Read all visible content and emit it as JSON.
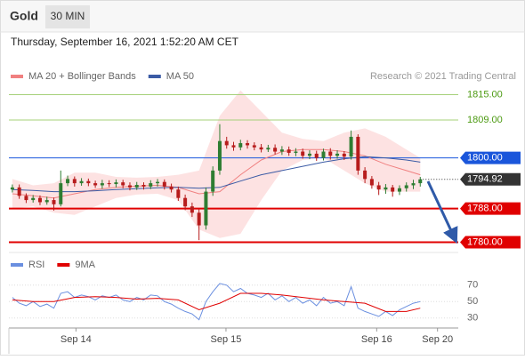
{
  "header": {
    "symbol": "Gold",
    "interval": "30 MIN",
    "timestamp": "Thursday, September 16, 2021 1:52:20 AM CET",
    "credit": "Research © 2021 Trading Central"
  },
  "chart_data": [
    {
      "type": "candlestick",
      "xlim": [
        -0.5,
        64.5
      ],
      "ylim": [
        1778,
        1817
      ],
      "up_color": "#2e7d32",
      "down_color": "#b71c1c",
      "open": [
        1792.5,
        1793,
        1791,
        1790,
        1790.5,
        1789.5,
        1790,
        1789,
        1794,
        1795,
        1794,
        1794.5,
        1794,
        1793.5,
        1794,
        1793.8,
        1794.2,
        1793.5,
        1793,
        1793.6,
        1793.2,
        1794,
        1794.3,
        1793.2,
        1792.5,
        1790.5,
        1788.5,
        1787,
        1784,
        1792,
        1797,
        1804,
        1803,
        1802.5,
        1803.5,
        1803,
        1802.5,
        1802,
        1802.4,
        1801.5,
        1802,
        1801.2,
        1801.5,
        1800.5,
        1801,
        1800,
        1801.5,
        1800.5,
        1801,
        1800.3,
        1805,
        1797,
        1795,
        1793.5,
        1792.5,
        1793,
        1792,
        1792.8,
        1793.5,
        1794
      ],
      "high": [
        1793.7,
        1793.7,
        1791.6,
        1791.2,
        1791.1,
        1790.8,
        1790.6,
        1797,
        1795.8,
        1795.6,
        1795.2,
        1795.1,
        1794.6,
        1794.8,
        1794.7,
        1794.9,
        1794.8,
        1794.2,
        1794.3,
        1794.2,
        1794.7,
        1795,
        1794.9,
        1793.9,
        1793.2,
        1791.3,
        1789.4,
        1787.8,
        1793,
        1798,
        1808,
        1805,
        1803.8,
        1804.3,
        1804.2,
        1803.7,
        1803.3,
        1803.1,
        1803.2,
        1802.8,
        1802.7,
        1802.3,
        1802.2,
        1801.8,
        1801.7,
        1802.2,
        1802.3,
        1801.8,
        1801.6,
        1806.5,
        1805.6,
        1797.8,
        1795.7,
        1794.3,
        1793.8,
        1793.6,
        1793.5,
        1794.2,
        1794.8,
        1795.5
      ],
      "low": [
        1791.8,
        1790.3,
        1789.3,
        1789.4,
        1788.8,
        1788.9,
        1787.5,
        1788.5,
        1793.3,
        1793.2,
        1793.4,
        1793.3,
        1792.9,
        1792.7,
        1793.1,
        1793,
        1792.8,
        1792.3,
        1792.4,
        1792.5,
        1792.6,
        1793.2,
        1792.5,
        1791.8,
        1789.8,
        1787.6,
        1786,
        1780.5,
        1783,
        1791,
        1796,
        1802.2,
        1801.7,
        1801.8,
        1802.2,
        1801.8,
        1801.3,
        1801.4,
        1800.8,
        1800.7,
        1800.5,
        1800.4,
        1799.8,
        1799.7,
        1799.3,
        1799.4,
        1799.6,
        1799.8,
        1799.5,
        1799.6,
        1796,
        1794,
        1792.7,
        1791.2,
        1791.5,
        1790.8,
        1791.2,
        1792,
        1792.6,
        1793.2
      ],
      "close": [
        1793,
        1791,
        1790,
        1790.5,
        1789.5,
        1790,
        1789,
        1794,
        1795,
        1794,
        1794.5,
        1794,
        1793.5,
        1794,
        1793.8,
        1794.2,
        1793.5,
        1793,
        1793.6,
        1793.2,
        1794,
        1794.3,
        1793.2,
        1792.5,
        1790.5,
        1788.5,
        1787,
        1784,
        1792,
        1797,
        1804,
        1803,
        1802.5,
        1803.5,
        1803,
        1802.5,
        1802,
        1802.4,
        1801.5,
        1802,
        1801.2,
        1801.5,
        1800.5,
        1801,
        1800,
        1801.5,
        1800.5,
        1801,
        1800.3,
        1805,
        1797,
        1795,
        1793.5,
        1792.5,
        1793,
        1792,
        1792.8,
        1793.5,
        1794,
        1794.92
      ],
      "series": [
        {
          "name": "MA 20 + Bollinger Bands",
          "color": "#f08080",
          "band_color": "#fde2e2",
          "x": [
            0,
            3,
            6,
            9,
            12,
            15,
            18,
            21,
            24,
            27,
            30,
            33,
            36,
            39,
            42,
            45,
            48,
            51,
            54,
            57,
            59
          ],
          "values": [
            1791.5,
            1791,
            1790.5,
            1791.5,
            1792.5,
            1793,
            1793.3,
            1793.5,
            1793,
            1791.5,
            1792,
            1796,
            1799.5,
            1801.5,
            1802,
            1802,
            1801.5,
            1800.5,
            1798.5,
            1797,
            1796
          ],
          "upper": [
            1795,
            1793.5,
            1794,
            1796.5,
            1796.5,
            1795.5,
            1795.3,
            1795.5,
            1796,
            1797,
            1810,
            1816,
            1811,
            1806,
            1804.5,
            1804,
            1806,
            1807,
            1805,
            1802,
            1800
          ],
          "lower": [
            1788,
            1788.5,
            1787,
            1786.5,
            1788.5,
            1790.5,
            1791.3,
            1791.5,
            1790,
            1783,
            1781,
            1782,
            1790,
            1797,
            1799.5,
            1800,
            1797,
            1794,
            1792,
            1792,
            1792
          ]
        },
        {
          "name": "MA 50",
          "color": "#3b5ba5",
          "x": [
            0,
            3,
            6,
            9,
            12,
            15,
            18,
            21,
            24,
            27,
            30,
            33,
            36,
            39,
            42,
            45,
            48,
            51,
            54,
            57,
            59
          ],
          "values": [
            1792.5,
            1792.3,
            1792,
            1792,
            1792.2,
            1792.5,
            1792.7,
            1792.9,
            1793,
            1792.8,
            1793,
            1794.5,
            1796,
            1797,
            1798,
            1799,
            1799.8,
            1800.3,
            1800,
            1799.5,
            1799
          ]
        }
      ],
      "levels": [
        {
          "value": 1815,
          "label": "1815.00",
          "color": "#a5d07a",
          "text_color": "#4c9a12",
          "style": "plain"
        },
        {
          "value": 1809,
          "label": "1809.00",
          "color": "#a5d07a",
          "text_color": "#4c9a12",
          "style": "plain"
        },
        {
          "value": 1800,
          "label": "1800.00",
          "color": "#1a56db",
          "text_color": "#ffffff",
          "style": "box"
        },
        {
          "value": 1794.92,
          "label": "1794.92",
          "color": "#333333",
          "text_color": "#ffffff",
          "style": "current"
        },
        {
          "value": 1788,
          "label": "1788.00",
          "color": "#e00000",
          "text_color": "#ffffff",
          "style": "box"
        },
        {
          "value": 1780,
          "label": "1780.00",
          "color": "#e00000",
          "text_color": "#ffffff",
          "style": "box"
        }
      ]
    },
    {
      "type": "line",
      "xlim": [
        -0.5,
        64.5
      ],
      "ylim": [
        19,
        87
      ],
      "yticks": [
        70,
        50,
        30
      ],
      "grid": true,
      "xticks": [
        {
          "value": 9.2,
          "label": "Sep 14"
        },
        {
          "value": 30.9,
          "label": "Sep 15"
        },
        {
          "value": 52.7,
          "label": "Sep 16"
        },
        {
          "value": 61.5,
          "label": "Sep 20"
        }
      ],
      "series": [
        {
          "name": "RSI",
          "color": "#6a8fe0",
          "values": [
            55,
            48,
            45,
            50,
            44,
            47,
            42,
            60,
            62,
            55,
            58,
            56,
            52,
            57,
            55,
            58,
            52,
            50,
            55,
            52,
            58,
            57,
            50,
            47,
            42,
            38,
            35,
            28,
            50,
            62,
            72,
            70,
            62,
            66,
            60,
            58,
            55,
            60,
            52,
            57,
            50,
            55,
            48,
            52,
            45,
            55,
            48,
            50,
            45,
            68,
            42,
            38,
            35,
            32,
            38,
            33,
            40,
            44,
            48,
            50
          ]
        },
        {
          "name": "9MA",
          "color": "#e00000",
          "x": [
            0,
            3,
            6,
            9,
            12,
            15,
            18,
            21,
            24,
            27,
            30,
            33,
            36,
            39,
            42,
            45,
            48,
            51,
            54,
            57,
            59
          ],
          "values": [
            52,
            50,
            50,
            55,
            56,
            55,
            53,
            54,
            52,
            40,
            48,
            60,
            60,
            58,
            55,
            52,
            50,
            48,
            38,
            38,
            42
          ]
        }
      ]
    }
  ]
}
